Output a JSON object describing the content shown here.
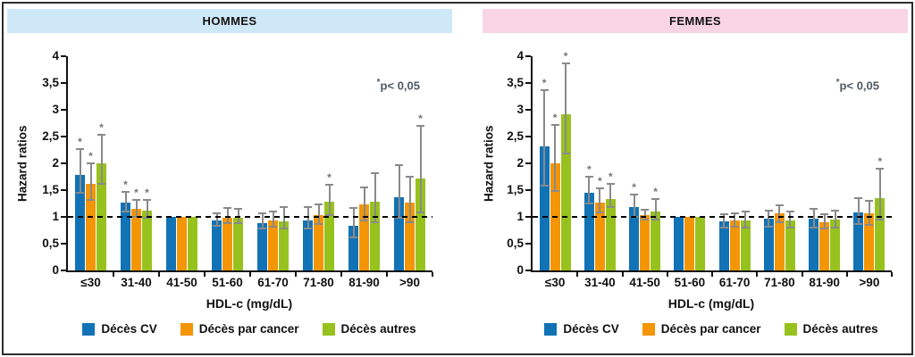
{
  "figure": {
    "outer_border_color": "#2d2d2d",
    "background": "#ffffff",
    "axis_color": "#111111",
    "error_bar_color": "#8a8a8a"
  },
  "chart_data": [
    {
      "type": "bar",
      "title": "HOMMES",
      "band_color": "#cfe8f8",
      "ylabel": "Hazard ratios",
      "xlabel": "HDL-c (mg/dL)",
      "annotation": {
        "star": "*",
        "text": "p< 0,05"
      },
      "annotation_color": "#4e5a66",
      "ylim": [
        0,
        4
      ],
      "ref_line": 1,
      "grid": false,
      "legend_position": "bottom",
      "y_ticks": [
        {
          "v": 0,
          "label": "0"
        },
        {
          "v": 0.5,
          "label": "0,5"
        },
        {
          "v": 1,
          "label": "1"
        },
        {
          "v": 1.5,
          "label": "1,5"
        },
        {
          "v": 2,
          "label": "2"
        },
        {
          "v": 2.5,
          "label": "2,5"
        },
        {
          "v": 3,
          "label": "3"
        },
        {
          "v": 3.5,
          "label": "3,5"
        },
        {
          "v": 4,
          "label": "4"
        }
      ],
      "categories": [
        "≤30",
        "31-40",
        "41-50",
        "51-60",
        "61-70",
        "71-80",
        "81-90",
        ">90"
      ],
      "series": [
        {
          "name": "Décès CV",
          "color": "#1173b5",
          "values": [
            1.78,
            1.27,
            1.0,
            0.94,
            0.89,
            0.94,
            0.83,
            1.37
          ],
          "err_lo": [
            1.45,
            1.1,
            null,
            0.83,
            0.78,
            0.79,
            0.62,
            0.98
          ],
          "err_hi": [
            2.27,
            1.46,
            null,
            1.06,
            1.06,
            1.19,
            1.17,
            1.97
          ],
          "sig": [
            true,
            true,
            false,
            false,
            false,
            false,
            false,
            false
          ]
        },
        {
          "name": "Décès par cancer",
          "color": "#f39504",
          "values": [
            1.61,
            1.15,
            1.0,
            0.99,
            0.93,
            1.03,
            1.23,
            1.26
          ],
          "err_lo": [
            1.31,
            1.0,
            null,
            0.89,
            0.81,
            0.87,
            0.94,
            0.9
          ],
          "err_hi": [
            2.0,
            1.31,
            null,
            1.16,
            1.1,
            1.23,
            1.55,
            1.75
          ],
          "sig": [
            true,
            true,
            false,
            false,
            false,
            false,
            false,
            false
          ]
        },
        {
          "name": "Décès autres",
          "color": "#97c21d",
          "values": [
            2.0,
            1.12,
            1.0,
            0.99,
            0.92,
            1.28,
            1.29,
            1.71
          ],
          "err_lo": [
            1.62,
            0.98,
            null,
            0.89,
            0.79,
            1.04,
            0.9,
            1.08
          ],
          "err_hi": [
            2.53,
            1.31,
            null,
            1.15,
            1.19,
            1.6,
            1.82,
            2.7
          ],
          "sig": [
            true,
            true,
            false,
            false,
            false,
            true,
            false,
            true
          ]
        }
      ]
    },
    {
      "type": "bar",
      "title": "FEMMES",
      "band_color": "#f9d5e3",
      "ylabel": "Hazard ratios",
      "xlabel": "HDL-c (mg/dL)",
      "annotation": {
        "star": "*",
        "text": "p< 0,05"
      },
      "annotation_color": "#4e5a66",
      "ylim": [
        0,
        4
      ],
      "ref_line": 1,
      "grid": false,
      "legend_position": "bottom",
      "y_ticks": [
        {
          "v": 0,
          "label": "0"
        },
        {
          "v": 0.5,
          "label": "0,5"
        },
        {
          "v": 1,
          "label": "1"
        },
        {
          "v": 1.5,
          "label": "1,5"
        },
        {
          "v": 2,
          "label": "2"
        },
        {
          "v": 2.5,
          "label": "2,5"
        },
        {
          "v": 3,
          "label": "3"
        },
        {
          "v": 3.5,
          "label": "3,5"
        },
        {
          "v": 4,
          "label": "4"
        }
      ],
      "categories": [
        "≤30",
        "31-40",
        "41-50",
        "51-60",
        "61-70",
        "71-80",
        "81-90",
        ">90"
      ],
      "series": [
        {
          "name": "Décès CV",
          "color": "#1173b5",
          "values": [
            2.31,
            1.45,
            1.19,
            1.0,
            0.91,
            0.96,
            0.96,
            1.08
          ],
          "err_lo": [
            1.58,
            1.25,
            1.0,
            null,
            0.8,
            0.82,
            0.8,
            0.86
          ],
          "err_hi": [
            3.36,
            1.75,
            1.42,
            null,
            1.05,
            1.12,
            1.15,
            1.35
          ],
          "sig": [
            true,
            true,
            true,
            false,
            false,
            false,
            false,
            false
          ]
        },
        {
          "name": "Décès par cancer",
          "color": "#f39504",
          "values": [
            2.0,
            1.27,
            1.04,
            1.0,
            0.93,
            1.07,
            0.9,
            1.06
          ],
          "err_lo": [
            1.48,
            1.09,
            0.95,
            null,
            0.82,
            0.9,
            0.78,
            0.85
          ],
          "err_hi": [
            2.72,
            1.54,
            1.13,
            null,
            1.07,
            1.22,
            1.05,
            1.3
          ],
          "sig": [
            true,
            true,
            false,
            false,
            false,
            false,
            false,
            false
          ]
        },
        {
          "name": "Décès autres",
          "color": "#97c21d",
          "values": [
            2.91,
            1.34,
            1.1,
            1.0,
            0.93,
            0.93,
            0.95,
            1.35
          ],
          "err_lo": [
            2.19,
            1.18,
            0.95,
            null,
            0.8,
            0.8,
            0.8,
            0.95
          ],
          "err_hi": [
            3.87,
            1.61,
            1.33,
            null,
            1.1,
            1.1,
            1.12,
            1.9
          ],
          "sig": [
            true,
            true,
            true,
            false,
            false,
            false,
            false,
            true
          ]
        }
      ]
    }
  ]
}
